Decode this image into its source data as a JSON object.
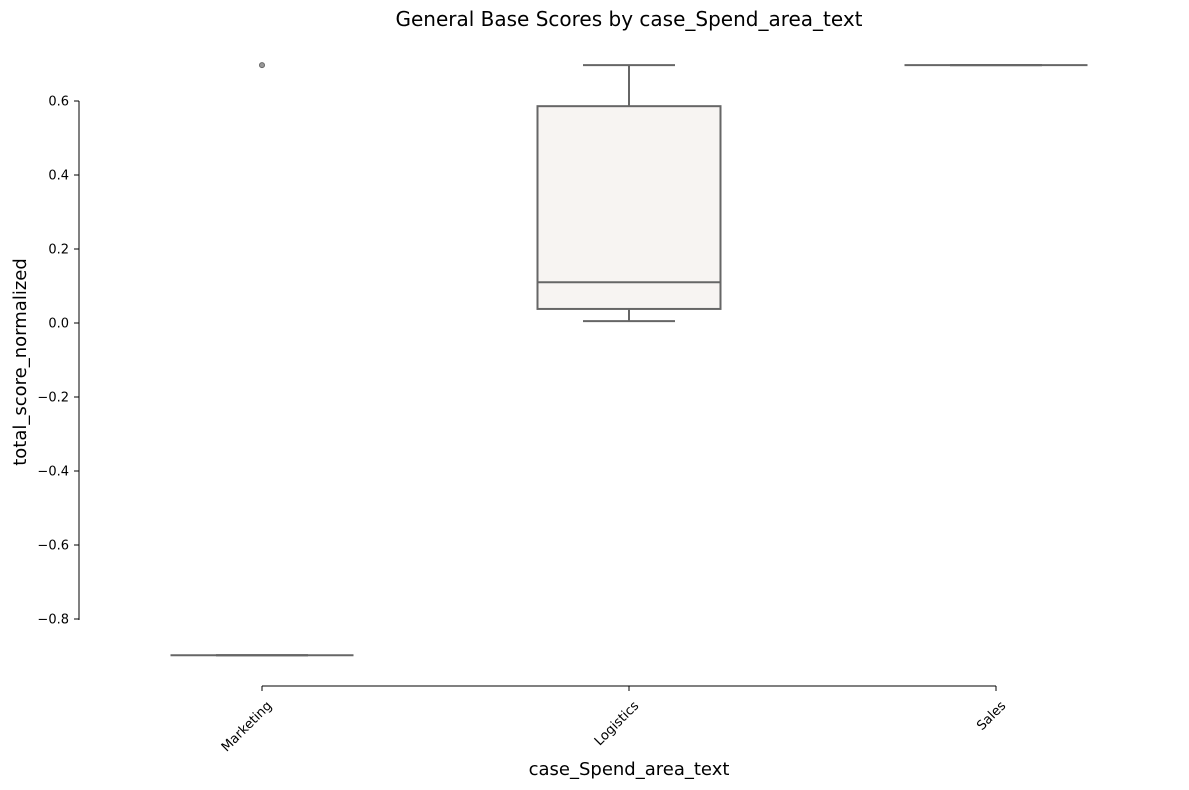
{
  "chart_data": {
    "type": "box",
    "title": "General Base Scores by case_Spend_area_text",
    "xlabel": "case_Spend_area_text",
    "ylabel": "total_score_normalized",
    "categories": [
      "Marketing",
      "Logistics",
      "Sales"
    ],
    "y_ticks": [
      0.6,
      0.4,
      0.2,
      0.0,
      -0.2,
      -0.4,
      -0.6,
      -0.8
    ],
    "y_tick_labels": [
      "0.6",
      "0.4",
      "0.2",
      "0.0",
      "−0.2",
      "−0.4",
      "−0.6",
      "−0.8"
    ],
    "ylim": [
      -0.97,
      0.75
    ],
    "grid": false,
    "box_fill_color": "#f7f4f2",
    "line_color": "#666666",
    "boxes": [
      {
        "category": "Marketing",
        "whisker_low": -0.898,
        "q1": -0.898,
        "median": -0.898,
        "q3": -0.898,
        "whisker_high": -0.898,
        "outliers": [
          0.697
        ]
      },
      {
        "category": "Logistics",
        "whisker_low": 0.005,
        "q1": 0.038,
        "median": 0.11,
        "q3": 0.586,
        "whisker_high": 0.697,
        "outliers": []
      },
      {
        "category": "Sales",
        "whisker_low": 0.697,
        "q1": 0.697,
        "median": 0.697,
        "q3": 0.697,
        "whisker_high": 0.697,
        "outliers": []
      }
    ]
  }
}
